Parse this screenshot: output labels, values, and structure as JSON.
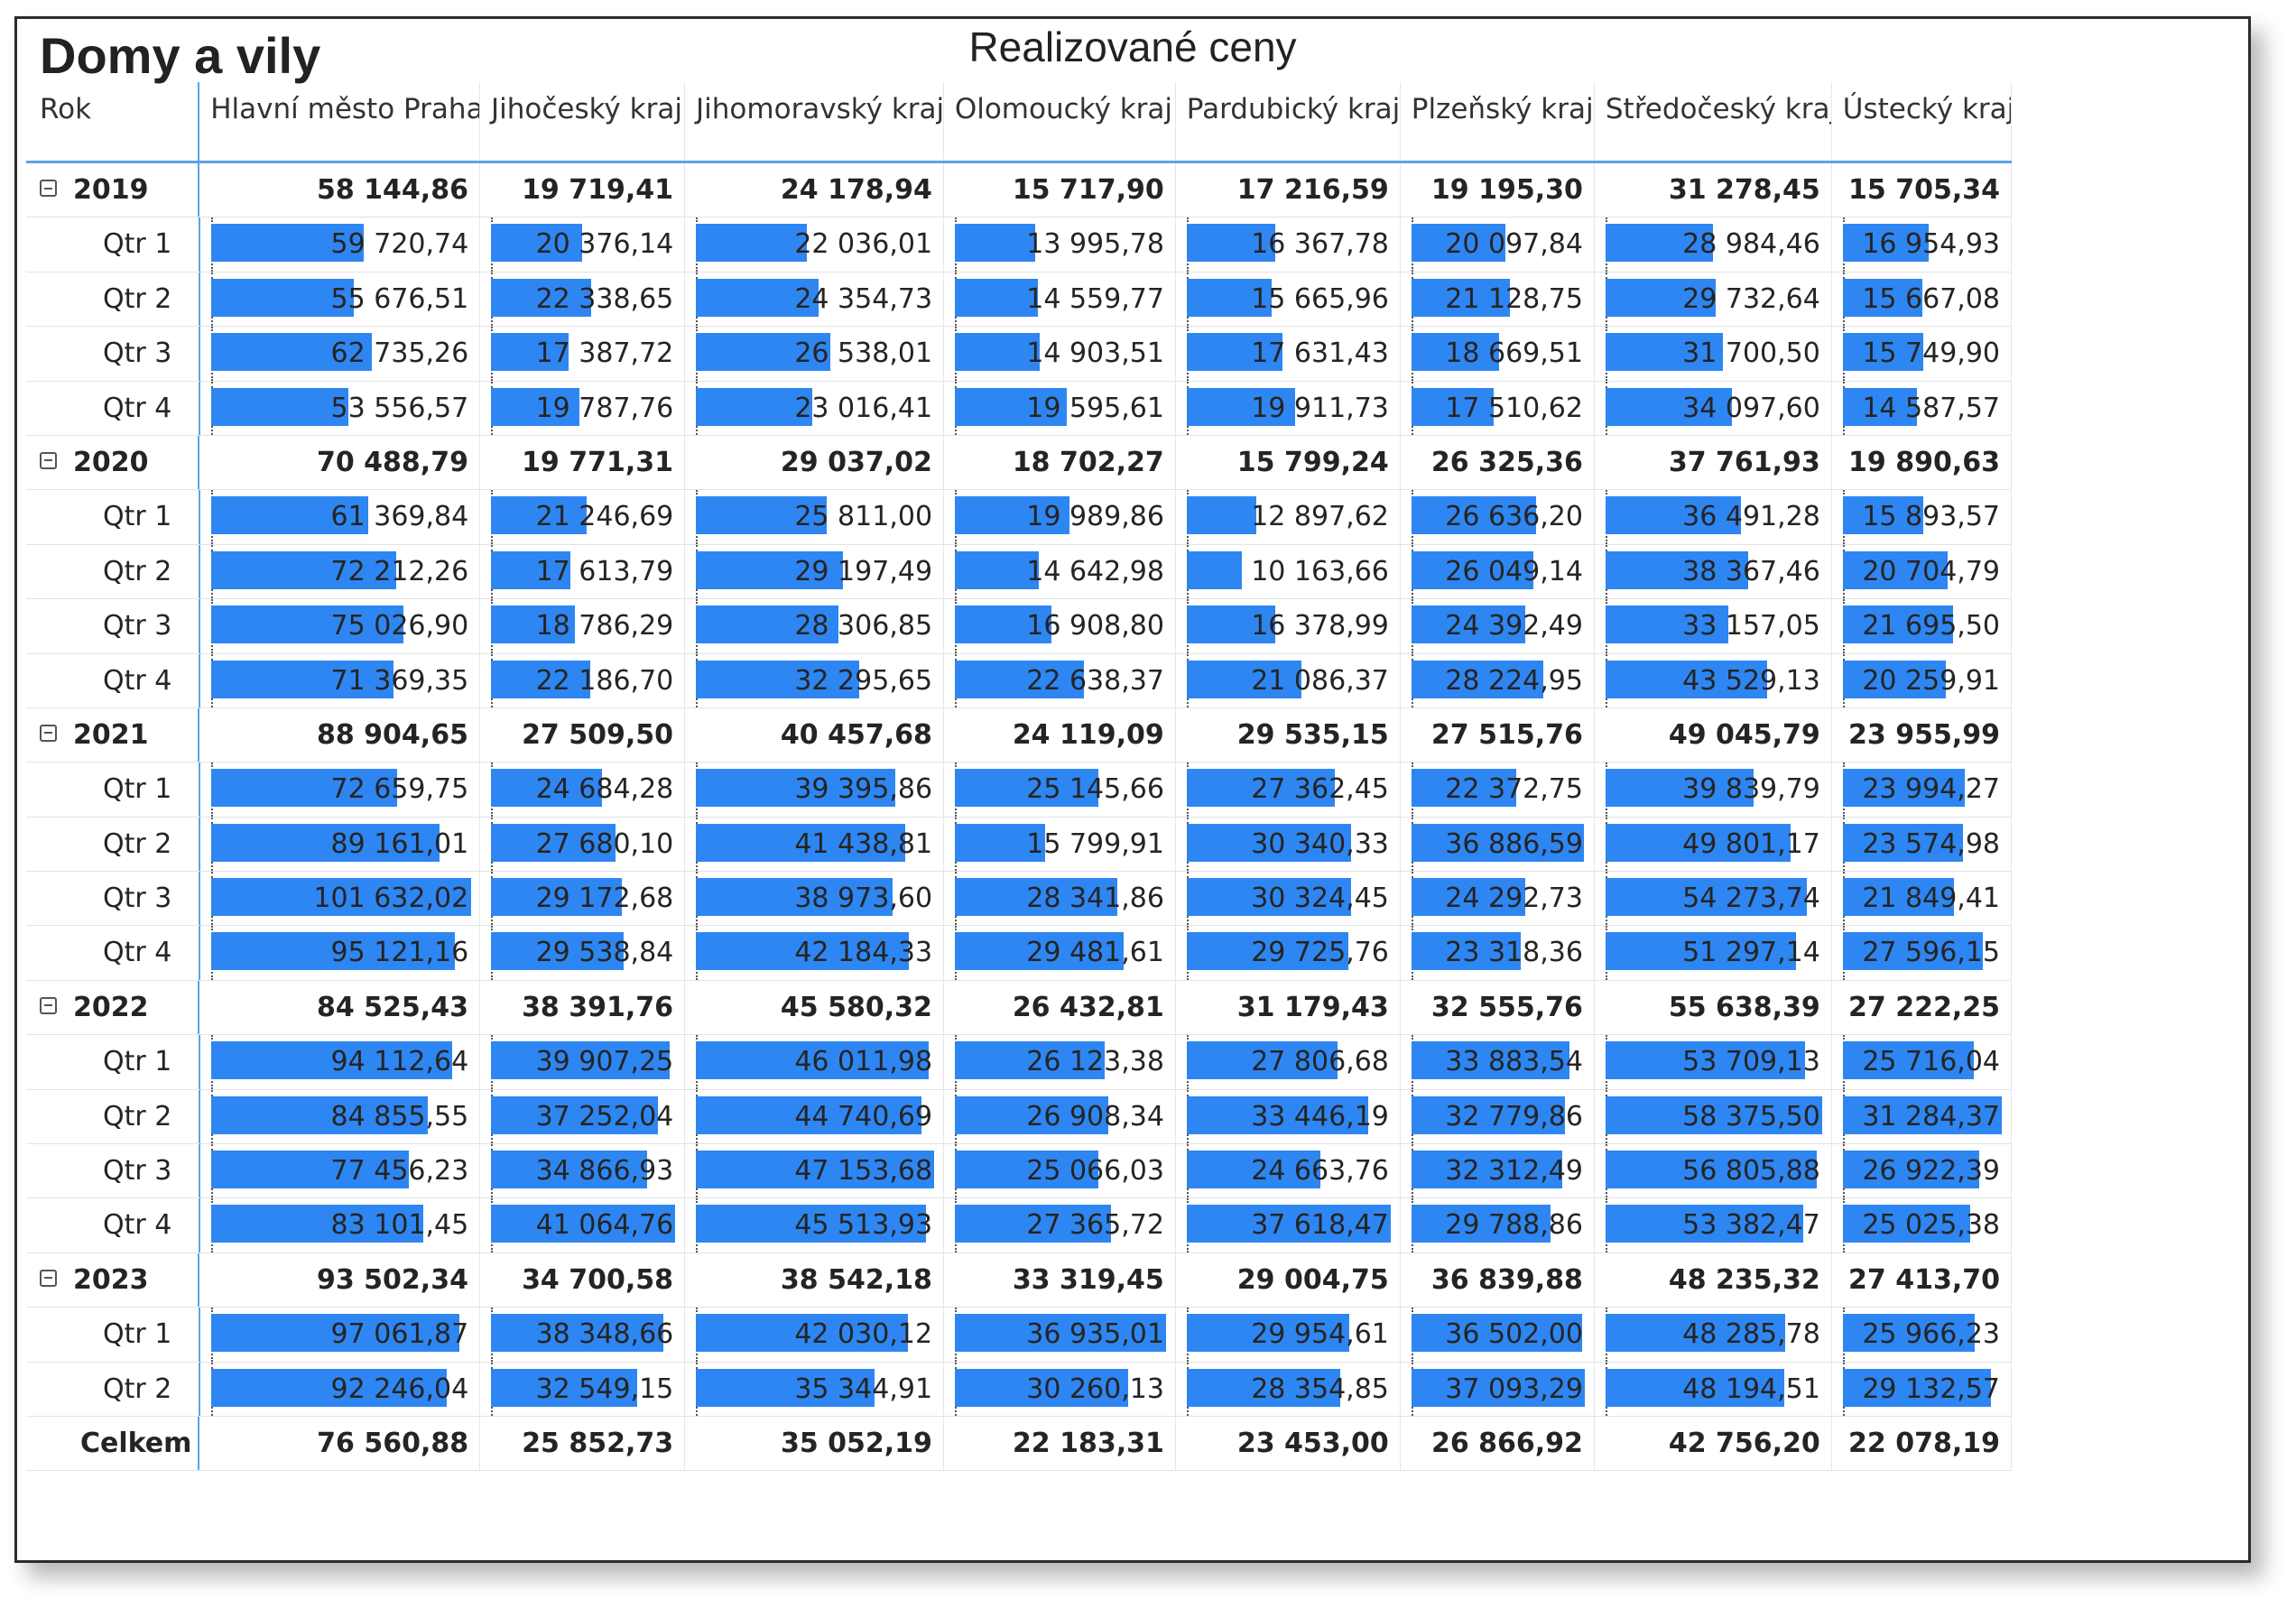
{
  "title": "Domy a vily",
  "chart_title": "Realizované ceny",
  "colors": {
    "bar": "#2e86f2",
    "header_rule": "#5ca3e6"
  },
  "columns": [
    "Rok",
    "Hlavní město Praha",
    "Jihočeský kraj",
    "Jihomoravský kraj",
    "Olomoucký kraj",
    "Pardubický kraj",
    "Plzeňský kraj",
    "Středočeský kraj",
    "Ústecký kraj"
  ],
  "bar_max": [
    101632.02,
    41064.76,
    47153.68,
    36935.01,
    37618.47,
    37093.29,
    58375.5,
    31284.37
  ],
  "rows": [
    {
      "type": "year",
      "label": "2019",
      "values": [
        "58 144,86",
        "19 719,41",
        "24 178,94",
        "15 717,90",
        "17 216,59",
        "19 195,30",
        "31 278,45",
        "15 705,34"
      ]
    },
    {
      "type": "qtr",
      "label": "Qtr 1",
      "values": [
        "59 720,74",
        "20 376,14",
        "22 036,01",
        "13 995,78",
        "16 367,78",
        "20 097,84",
        "28 984,46",
        "16 954,93"
      ]
    },
    {
      "type": "qtr",
      "label": "Qtr 2",
      "values": [
        "55 676,51",
        "22 338,65",
        "24 354,73",
        "14 559,77",
        "15 665,96",
        "21 128,75",
        "29 732,64",
        "15 667,08"
      ]
    },
    {
      "type": "qtr",
      "label": "Qtr 3",
      "values": [
        "62 735,26",
        "17 387,72",
        "26 538,01",
        "14 903,51",
        "17 631,43",
        "18 669,51",
        "31 700,50",
        "15 749,90"
      ]
    },
    {
      "type": "qtr",
      "label": "Qtr 4",
      "values": [
        "53 556,57",
        "19 787,76",
        "23 016,41",
        "19 595,61",
        "19 911,73",
        "17 510,62",
        "34 097,60",
        "14 587,57"
      ]
    },
    {
      "type": "year",
      "label": "2020",
      "values": [
        "70 488,79",
        "19 771,31",
        "29 037,02",
        "18 702,27",
        "15 799,24",
        "26 325,36",
        "37 761,93",
        "19 890,63"
      ]
    },
    {
      "type": "qtr",
      "label": "Qtr 1",
      "values": [
        "61 369,84",
        "21 246,69",
        "25 811,00",
        "19 989,86",
        "12 897,62",
        "26 636,20",
        "36 491,28",
        "15 893,57"
      ]
    },
    {
      "type": "qtr",
      "label": "Qtr 2",
      "values": [
        "72 212,26",
        "17 613,79",
        "29 197,49",
        "14 642,98",
        "10 163,66",
        "26 049,14",
        "38 367,46",
        "20 704,79"
      ]
    },
    {
      "type": "qtr",
      "label": "Qtr 3",
      "values": [
        "75 026,90",
        "18 786,29",
        "28 306,85",
        "16 908,80",
        "16 378,99",
        "24 392,49",
        "33 157,05",
        "21 695,50"
      ]
    },
    {
      "type": "qtr",
      "label": "Qtr 4",
      "values": [
        "71 369,35",
        "22 186,70",
        "32 295,65",
        "22 638,37",
        "21 086,37",
        "28 224,95",
        "43 529,13",
        "20 259,91"
      ]
    },
    {
      "type": "year",
      "label": "2021",
      "values": [
        "88 904,65",
        "27 509,50",
        "40 457,68",
        "24 119,09",
        "29 535,15",
        "27 515,76",
        "49 045,79",
        "23 955,99"
      ]
    },
    {
      "type": "qtr",
      "label": "Qtr 1",
      "values": [
        "72 659,75",
        "24 684,28",
        "39 395,86",
        "25 145,66",
        "27 362,45",
        "22 372,75",
        "39 839,79",
        "23 994,27"
      ]
    },
    {
      "type": "qtr",
      "label": "Qtr 2",
      "values": [
        "89 161,01",
        "27 680,10",
        "41 438,81",
        "15 799,91",
        "30 340,33",
        "36 886,59",
        "49 801,17",
        "23 574,98"
      ]
    },
    {
      "type": "qtr",
      "label": "Qtr 3",
      "values": [
        "101 632,02",
        "29 172,68",
        "38 973,60",
        "28 341,86",
        "30 324,45",
        "24 292,73",
        "54 273,74",
        "21 849,41"
      ]
    },
    {
      "type": "qtr",
      "label": "Qtr 4",
      "values": [
        "95 121,16",
        "29 538,84",
        "42 184,33",
        "29 481,61",
        "29 725,76",
        "23 318,36",
        "51 297,14",
        "27 596,15"
      ]
    },
    {
      "type": "year",
      "label": "2022",
      "values": [
        "84 525,43",
        "38 391,76",
        "45 580,32",
        "26 432,81",
        "31 179,43",
        "32 555,76",
        "55 638,39",
        "27 222,25"
      ]
    },
    {
      "type": "qtr",
      "label": "Qtr 1",
      "values": [
        "94 112,64",
        "39 907,25",
        "46 011,98",
        "26 123,38",
        "27 806,68",
        "33 883,54",
        "53 709,13",
        "25 716,04"
      ]
    },
    {
      "type": "qtr",
      "label": "Qtr 2",
      "values": [
        "84 855,55",
        "37 252,04",
        "44 740,69",
        "26 908,34",
        "33 446,19",
        "32 779,86",
        "58 375,50",
        "31 284,37"
      ]
    },
    {
      "type": "qtr",
      "label": "Qtr 3",
      "values": [
        "77 456,23",
        "34 866,93",
        "47 153,68",
        "25 066,03",
        "24 663,76",
        "32 312,49",
        "56 805,88",
        "26 922,39"
      ]
    },
    {
      "type": "qtr",
      "label": "Qtr 4",
      "values": [
        "83 101,45",
        "41 064,76",
        "45 513,93",
        "27 365,72",
        "37 618,47",
        "29 788,86",
        "53 382,47",
        "25 025,38"
      ]
    },
    {
      "type": "year",
      "label": "2023",
      "values": [
        "93 502,34",
        "34 700,58",
        "38 542,18",
        "33 319,45",
        "29 004,75",
        "36 839,88",
        "48 235,32",
        "27 413,70"
      ]
    },
    {
      "type": "qtr",
      "label": "Qtr 1",
      "values": [
        "97 061,87",
        "38 348,66",
        "42 030,12",
        "36 935,01",
        "29 954,61",
        "36 502,00",
        "48 285,78",
        "25 966,23"
      ]
    },
    {
      "type": "qtr",
      "label": "Qtr 2",
      "values": [
        "92 246,04",
        "32 549,15",
        "35 344,91",
        "30 260,13",
        "28 354,85",
        "37 093,29",
        "48 194,51",
        "29 132,57"
      ]
    },
    {
      "type": "total",
      "label": "Celkem",
      "values": [
        "76 560,88",
        "25 852,73",
        "35 052,19",
        "22 183,31",
        "23 453,00",
        "26 866,92",
        "42 756,20",
        "22 078,19"
      ]
    }
  ]
}
